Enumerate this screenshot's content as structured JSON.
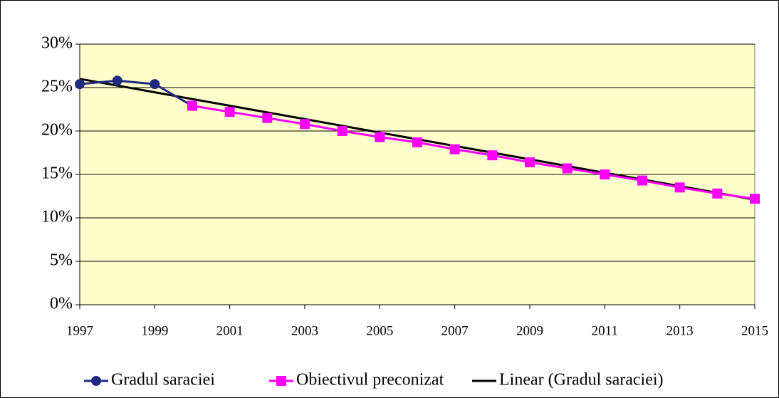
{
  "chart_data": {
    "type": "line",
    "x": [
      1997,
      1998,
      1999,
      2000,
      2001,
      2002,
      2003,
      2004,
      2005,
      2006,
      2007,
      2008,
      2009,
      2010,
      2011,
      2012,
      2013,
      2014,
      2015
    ],
    "series": [
      {
        "name": "Gradul saraciei",
        "color": "#1f2a80",
        "marker": "circle",
        "values": [
          25.4,
          25.8,
          25.4,
          22.9,
          null,
          null,
          null,
          null,
          null,
          null,
          null,
          null,
          null,
          null,
          null,
          null,
          null,
          null,
          null
        ]
      },
      {
        "name": "Obiectivul preconizat",
        "color": "#ff00ff",
        "marker": "square",
        "values": [
          null,
          null,
          null,
          22.9,
          22.2,
          21.5,
          20.8,
          20.0,
          19.3,
          18.7,
          17.9,
          17.2,
          16.4,
          15.7,
          15.0,
          14.3,
          13.5,
          12.8,
          12.2
        ]
      },
      {
        "name": "Linear (Gradul saraciei)",
        "color": "#000000",
        "marker": "none",
        "values": [
          26.0,
          25.23,
          24.46,
          23.68,
          22.91,
          22.14,
          21.37,
          20.6,
          19.82,
          19.05,
          18.28,
          17.51,
          16.74,
          15.96,
          15.19,
          14.42,
          13.65,
          12.88,
          12.1
        ]
      }
    ],
    "xlim": [
      1997,
      2015
    ],
    "xticks": [
      1997,
      1999,
      2001,
      2003,
      2005,
      2007,
      2009,
      2011,
      2013,
      2015
    ],
    "ylim": [
      0,
      30
    ],
    "yticks": [
      {
        "value": 0,
        "label": "0%"
      },
      {
        "value": 5,
        "label": "5%"
      },
      {
        "value": 10,
        "label": "10%"
      },
      {
        "value": 15,
        "label": "15%"
      },
      {
        "value": 20,
        "label": "20%"
      },
      {
        "value": 25,
        "label": "25%"
      },
      {
        "value": 30,
        "label": "30%"
      }
    ],
    "grid": true,
    "plot_background": "#ffffcc",
    "legend": "bottom"
  }
}
